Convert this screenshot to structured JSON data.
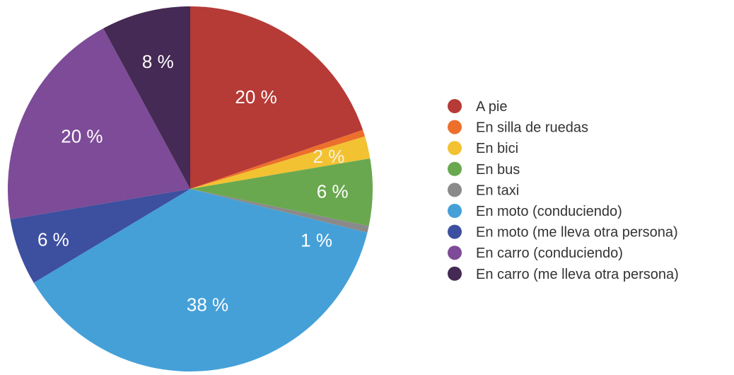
{
  "chart_data": {
    "type": "pie",
    "title": "",
    "legend_position": "right",
    "slices": [
      {
        "label": "A pie",
        "value": 20,
        "display": "20 %",
        "color": "#b63a36"
      },
      {
        "label": "En silla de ruedas",
        "value": 0.6,
        "display": "",
        "color": "#ec6f2b"
      },
      {
        "label": "En bici",
        "value": 2,
        "display": "2 %",
        "color": "#f2c232"
      },
      {
        "label": "En bus",
        "value": 6,
        "display": "6 %",
        "color": "#6aa84f"
      },
      {
        "label": "En taxi",
        "value": 0.6,
        "display": "",
        "color": "#8a8a8a"
      },
      {
        "label": "En moto (conduciendo)",
        "value": 38,
        "display": "38 %",
        "color": "#45a0d8"
      },
      {
        "label": "En moto (me lleva otra persona)",
        "value": 6,
        "display": "6 %",
        "color": "#3d4f9f"
      },
      {
        "label": "En carro (conduciendo)",
        "value": 20,
        "display": "20 %",
        "color": "#7d4b97"
      },
      {
        "label": "En carro (me lleva otra persona)",
        "value": 8,
        "display": "8 %",
        "color": "#442a54"
      }
    ],
    "extra_labels": [
      {
        "text": "1 %",
        "near_slice": "En taxi"
      }
    ]
  }
}
